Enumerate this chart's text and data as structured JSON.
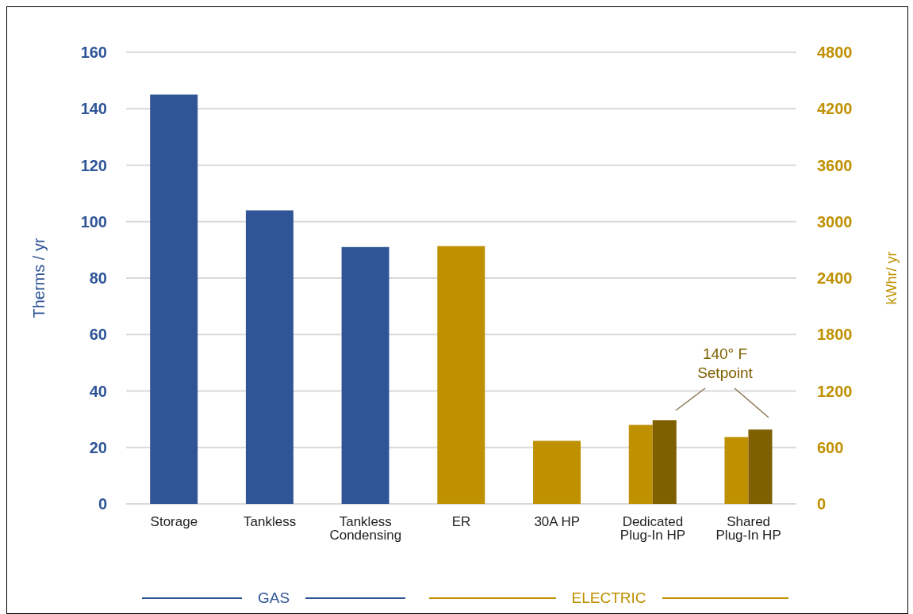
{
  "chart_data": {
    "type": "bar",
    "categories": [
      "Storage",
      "Tankless",
      "Tankless Condensing",
      "ER",
      "30A HP",
      "Dedicated Plug-In HP",
      "Shared Plug-In HP"
    ],
    "series": [
      {
        "name": "GAS",
        "color": "#2f5597",
        "values": [
          145,
          104,
          91,
          null,
          null,
          null,
          null
        ]
      },
      {
        "name": "ELECTRIC",
        "color": "#bf9000",
        "axis": "y2",
        "values": [
          null,
          null,
          null,
          2740,
          670,
          840,
          710
        ]
      },
      {
        "color": "#7f6000",
        "axis": "y2",
        "values": [
          null,
          null,
          null,
          null,
          null,
          890,
          790
        ]
      }
    ],
    "ylabel": "Therms / yr",
    "y2label": "kWhr/ yr",
    "ylim": [
      0,
      160
    ],
    "yticks": [
      0,
      20,
      40,
      60,
      80,
      100,
      120,
      140,
      160
    ],
    "y2lim": [
      0,
      4800
    ],
    "y2ticks": [
      0,
      600,
      1200,
      1800,
      2400,
      3000,
      3600,
      4200,
      4800
    ],
    "annotations": [
      "140° F Setpoint"
    ],
    "grid": "y",
    "legend": "bottom"
  }
}
